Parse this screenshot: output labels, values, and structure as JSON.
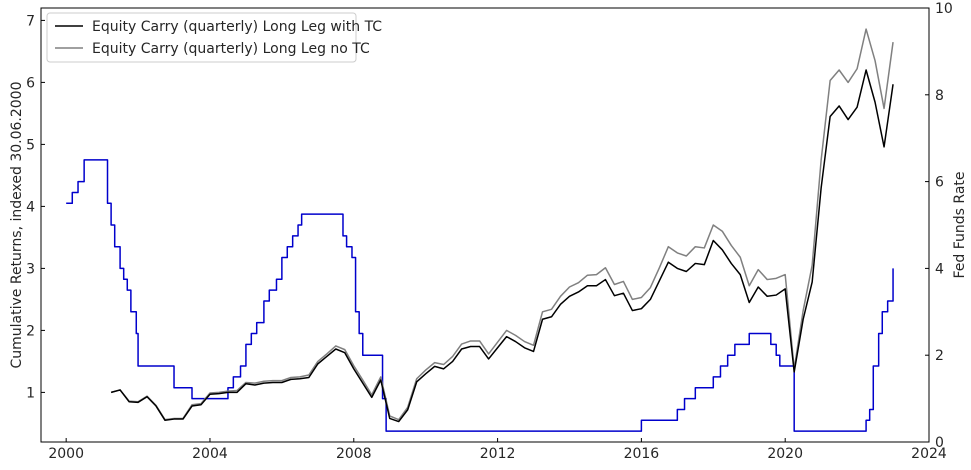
{
  "chart_data": {
    "type": "line",
    "ylabel": "Cumulative Returns, indexed 30.06.2000",
    "y2label": "Fed Funds Rate",
    "xlim": [
      1999.3,
      2024.0
    ],
    "ylim": [
      0.2,
      7.2
    ],
    "y2lim": [
      0,
      10
    ],
    "xticks": [
      2000,
      2004,
      2008,
      2012,
      2016,
      2020,
      2024
    ],
    "yticks": [
      1,
      2,
      3,
      4,
      5,
      6,
      7
    ],
    "y2ticks": [
      0,
      2,
      4,
      6,
      8,
      10
    ],
    "legend_position": "top-left",
    "legend": [
      "Equity Carry (quarterly) Long Leg with TC",
      "Equity Carry (quarterly) Long Leg no TC"
    ],
    "series": [
      {
        "name": "Equity Carry (quarterly) Long Leg with TC",
        "axis": "left",
        "color": "#000000",
        "x": [
          2001.25,
          2001.5,
          2001.75,
          2002.0,
          2002.25,
          2002.5,
          2002.75,
          2003.0,
          2003.25,
          2003.5,
          2003.75,
          2004.0,
          2004.25,
          2004.5,
          2004.75,
          2005.0,
          2005.25,
          2005.5,
          2005.75,
          2006.0,
          2006.25,
          2006.5,
          2006.75,
          2007.0,
          2007.25,
          2007.5,
          2007.75,
          2008.0,
          2008.25,
          2008.5,
          2008.75,
          2009.0,
          2009.25,
          2009.5,
          2009.75,
          2010.0,
          2010.25,
          2010.5,
          2010.75,
          2011.0,
          2011.25,
          2011.5,
          2011.75,
          2012.0,
          2012.25,
          2012.5,
          2012.75,
          2013.0,
          2013.25,
          2013.5,
          2013.75,
          2014.0,
          2014.25,
          2014.5,
          2014.75,
          2015.0,
          2015.25,
          2015.5,
          2015.75,
          2016.0,
          2016.25,
          2016.5,
          2016.75,
          2017.0,
          2017.25,
          2017.5,
          2017.75,
          2018.0,
          2018.25,
          2018.5,
          2018.75,
          2019.0,
          2019.25,
          2019.5,
          2019.75,
          2020.0,
          2020.25,
          2020.5,
          2020.75,
          2021.0,
          2021.25,
          2021.5,
          2021.75,
          2022.0,
          2022.25,
          2022.5,
          2022.75,
          2023.0
        ],
        "y": [
          1.0,
          1.04,
          0.85,
          0.84,
          0.93,
          0.78,
          0.55,
          0.57,
          0.57,
          0.78,
          0.8,
          0.97,
          0.98,
          1.0,
          1.0,
          1.14,
          1.12,
          1.15,
          1.16,
          1.16,
          1.21,
          1.22,
          1.24,
          1.46,
          1.58,
          1.7,
          1.64,
          1.38,
          1.15,
          0.92,
          1.2,
          0.58,
          0.53,
          0.72,
          1.17,
          1.3,
          1.42,
          1.38,
          1.5,
          1.7,
          1.74,
          1.74,
          1.54,
          1.72,
          1.9,
          1.82,
          1.72,
          1.66,
          2.18,
          2.22,
          2.42,
          2.55,
          2.62,
          2.72,
          2.72,
          2.82,
          2.56,
          2.6,
          2.32,
          2.35,
          2.5,
          2.8,
          3.1,
          3.0,
          2.95,
          3.08,
          3.06,
          3.45,
          3.3,
          3.08,
          2.9,
          2.45,
          2.7,
          2.55,
          2.57,
          2.67,
          1.33,
          2.18,
          2.78,
          4.3,
          5.45,
          5.62,
          5.4,
          5.6,
          6.2,
          5.68,
          4.96,
          5.97
        ]
      },
      {
        "name": "Equity Carry (quarterly) Long Leg no TC",
        "axis": "left",
        "color": "#808080",
        "x": [
          2001.25,
          2001.5,
          2001.75,
          2002.0,
          2002.25,
          2002.5,
          2002.75,
          2003.0,
          2003.25,
          2003.5,
          2003.75,
          2004.0,
          2004.25,
          2004.5,
          2004.75,
          2005.0,
          2005.25,
          2005.5,
          2005.75,
          2006.0,
          2006.25,
          2006.5,
          2006.75,
          2007.0,
          2007.25,
          2007.5,
          2007.75,
          2008.0,
          2008.25,
          2008.5,
          2008.75,
          2009.0,
          2009.25,
          2009.5,
          2009.75,
          2010.0,
          2010.25,
          2010.5,
          2010.75,
          2011.0,
          2011.25,
          2011.5,
          2011.75,
          2012.0,
          2012.25,
          2012.5,
          2012.75,
          2013.0,
          2013.25,
          2013.5,
          2013.75,
          2014.0,
          2014.25,
          2014.5,
          2014.75,
          2015.0,
          2015.25,
          2015.5,
          2015.75,
          2016.0,
          2016.25,
          2016.5,
          2016.75,
          2017.0,
          2017.25,
          2017.5,
          2017.75,
          2018.0,
          2018.25,
          2018.5,
          2018.75,
          2019.0,
          2019.25,
          2019.5,
          2019.75,
          2020.0,
          2020.25,
          2020.5,
          2020.75,
          2021.0,
          2021.25,
          2021.5,
          2021.75,
          2022.0,
          2022.25,
          2022.5,
          2022.75,
          2023.0
        ],
        "y": [
          1.0,
          1.04,
          0.86,
          0.85,
          0.94,
          0.79,
          0.56,
          0.58,
          0.58,
          0.8,
          0.82,
          0.99,
          1.0,
          1.02,
          1.03,
          1.16,
          1.15,
          1.18,
          1.19,
          1.19,
          1.24,
          1.25,
          1.28,
          1.5,
          1.62,
          1.75,
          1.69,
          1.43,
          1.2,
          0.96,
          1.25,
          0.62,
          0.56,
          0.76,
          1.22,
          1.36,
          1.48,
          1.45,
          1.58,
          1.78,
          1.83,
          1.83,
          1.62,
          1.81,
          2.0,
          1.92,
          1.82,
          1.76,
          2.3,
          2.34,
          2.55,
          2.7,
          2.77,
          2.89,
          2.9,
          3.01,
          2.74,
          2.79,
          2.5,
          2.53,
          2.69,
          3.01,
          3.35,
          3.25,
          3.2,
          3.35,
          3.33,
          3.7,
          3.6,
          3.37,
          3.18,
          2.72,
          2.98,
          2.82,
          2.84,
          2.9,
          1.38,
          2.32,
          3.05,
          4.75,
          6.03,
          6.2,
          6.0,
          6.22,
          6.86,
          6.35,
          5.58,
          6.65
        ]
      },
      {
        "name": "Fed Funds Rate",
        "axis": "right",
        "color": "#0000cc",
        "x": [
          2000.0,
          2000.17,
          2000.33,
          2000.5,
          2000.75,
          2001.0,
          2001.15,
          2001.25,
          2001.35,
          2001.5,
          2001.6,
          2001.7,
          2001.8,
          2001.95,
          2002.0,
          2002.5,
          2002.95,
          2003.0,
          2003.4,
          2003.5,
          2004.4,
          2004.5,
          2004.65,
          2004.85,
          2005.0,
          2005.15,
          2005.3,
          2005.5,
          2005.65,
          2005.85,
          2006.0,
          2006.15,
          2006.3,
          2006.45,
          2006.55,
          2007.6,
          2007.7,
          2007.8,
          2007.95,
          2008.05,
          2008.15,
          2008.25,
          2008.35,
          2008.8,
          2008.9,
          2009.0,
          2015.9,
          2016.0,
          2016.9,
          2017.0,
          2017.2,
          2017.4,
          2017.5,
          2017.9,
          2018.0,
          2018.2,
          2018.4,
          2018.6,
          2018.8,
          2019.0,
          2019.5,
          2019.6,
          2019.75,
          2019.85,
          2020.2,
          2020.25,
          2020.4,
          2022.15,
          2022.25,
          2022.35,
          2022.45,
          2022.6,
          2022.7,
          2022.85,
          2023.0
        ],
        "y": [
          5.5,
          5.75,
          6.0,
          6.5,
          6.5,
          6.5,
          5.5,
          5.0,
          4.5,
          4.0,
          3.75,
          3.5,
          3.0,
          2.5,
          1.75,
          1.75,
          1.75,
          1.25,
          1.25,
          1.0,
          1.0,
          1.25,
          1.5,
          1.75,
          2.25,
          2.5,
          2.75,
          3.25,
          3.5,
          3.75,
          4.25,
          4.5,
          4.75,
          5.0,
          5.25,
          5.25,
          4.75,
          4.5,
          4.25,
          3.0,
          2.5,
          2.0,
          2.0,
          1.0,
          0.25,
          0.25,
          0.25,
          0.5,
          0.5,
          0.75,
          1.0,
          1.0,
          1.25,
          1.25,
          1.5,
          1.75,
          2.0,
          2.25,
          2.25,
          2.5,
          2.5,
          2.25,
          2.0,
          1.75,
          1.75,
          0.25,
          0.25,
          0.25,
          0.5,
          0.75,
          1.75,
          2.5,
          3.0,
          3.25,
          4.0
        ]
      }
    ]
  }
}
